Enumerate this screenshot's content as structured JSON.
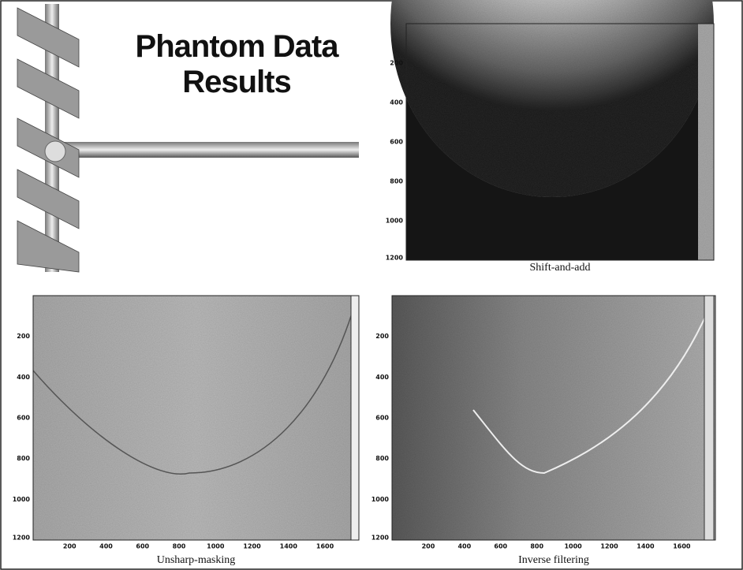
{
  "title": [
    "Phantom Data",
    "Results"
  ],
  "panels": [
    {
      "caption": "Shift-and-add",
      "yticks": [
        200,
        400,
        600,
        800,
        1000,
        1200
      ]
    },
    {
      "caption": "Unsharp-masking",
      "yticks": [
        200,
        400,
        600,
        800,
        1000,
        1200
      ],
      "xticks": [
        200,
        400,
        600,
        800,
        1000,
        1200,
        1400,
        1600
      ]
    },
    {
      "caption": "Inverse filtering",
      "yticks": [
        200,
        400,
        600,
        800,
        1000,
        1200
      ],
      "xticks": [
        200,
        400,
        600,
        800,
        1000,
        1200,
        1400,
        1600
      ]
    }
  ]
}
